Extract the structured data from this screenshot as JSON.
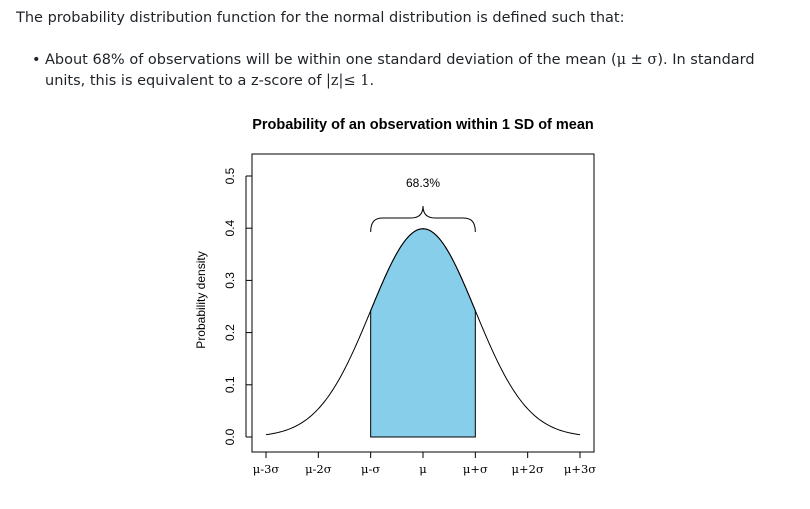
{
  "text": {
    "intro": "The probability distribution function for the normal distribution is defined such that:",
    "bullet_marker": "•",
    "bullet_part1": "About 68% of observations will be within one standard deviation of the mean (",
    "bullet_math1": "μ ± σ",
    "bullet_part2": "). In standard units, this is equivalent to a z-score of ",
    "bullet_math2": "|z|≤ 1",
    "bullet_part3": "."
  },
  "chart_data": {
    "type": "area",
    "title": "Probability of an observation within 1 SD of mean",
    "ylabel": "Probability density",
    "xlabel": "",
    "x_range": [
      -3.5,
      3.5
    ],
    "xlim": [
      -3,
      3
    ],
    "ylim": [
      0,
      0.5
    ],
    "y_ticks": [
      "0.0",
      "0.1",
      "0.2",
      "0.3",
      "0.4",
      "0.5"
    ],
    "x_tick_values": [
      -3,
      -2,
      -1,
      0,
      1,
      2,
      3
    ],
    "x_tick_labels": [
      "μ-3σ",
      "μ-2σ",
      "μ-σ",
      "μ",
      "μ+σ",
      "μ+2σ",
      "μ+3σ"
    ],
    "series": [
      {
        "name": "",
        "x": [
          -3,
          -2.5,
          -2,
          -1.5,
          -1,
          -0.5,
          0,
          0.5,
          1,
          1.5,
          2,
          2.5,
          3
        ],
        "y": [
          0.004,
          0.018,
          0.054,
          0.13,
          0.242,
          0.352,
          0.399,
          0.352,
          0.242,
          0.13,
          0.054,
          0.018,
          0.004
        ]
      }
    ],
    "shaded_region": {
      "from": -1,
      "to": 1,
      "color": "#87CEEB"
    },
    "annotation": "68.3%"
  }
}
